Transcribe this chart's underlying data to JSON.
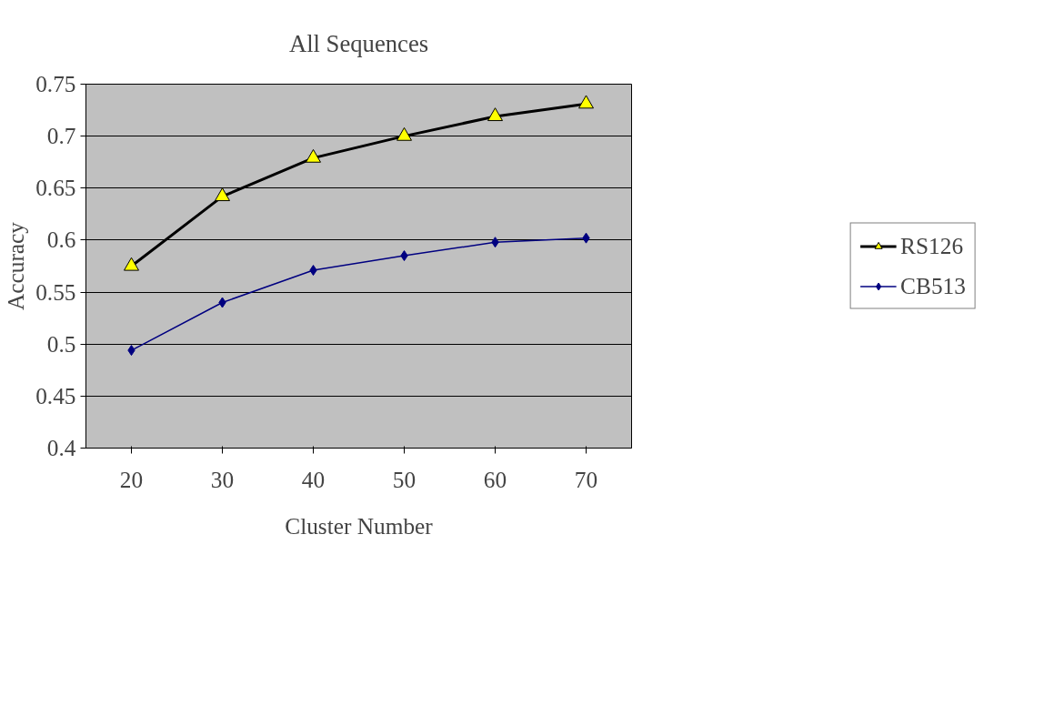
{
  "chart_data": {
    "type": "line",
    "title": "All Sequences",
    "xlabel": "Cluster Number",
    "ylabel": "Accuracy",
    "categories": [
      "20",
      "30",
      "40",
      "50",
      "60",
      "70"
    ],
    "series": [
      {
        "name": "RS126",
        "color": "#000000",
        "marker": "triangle",
        "values": [
          0.575,
          0.642,
          0.679,
          0.7,
          0.719,
          0.731
        ]
      },
      {
        "name": "CB513",
        "color": "#000080",
        "marker": "diamond",
        "values": [
          0.494,
          0.54,
          0.571,
          0.585,
          0.598,
          0.602
        ]
      }
    ],
    "ylim": [
      0.4,
      0.75
    ],
    "yticks": [
      0.4,
      0.45,
      0.5,
      0.55,
      0.6,
      0.65,
      0.7,
      0.75
    ],
    "grid": "y",
    "legend": "right"
  }
}
